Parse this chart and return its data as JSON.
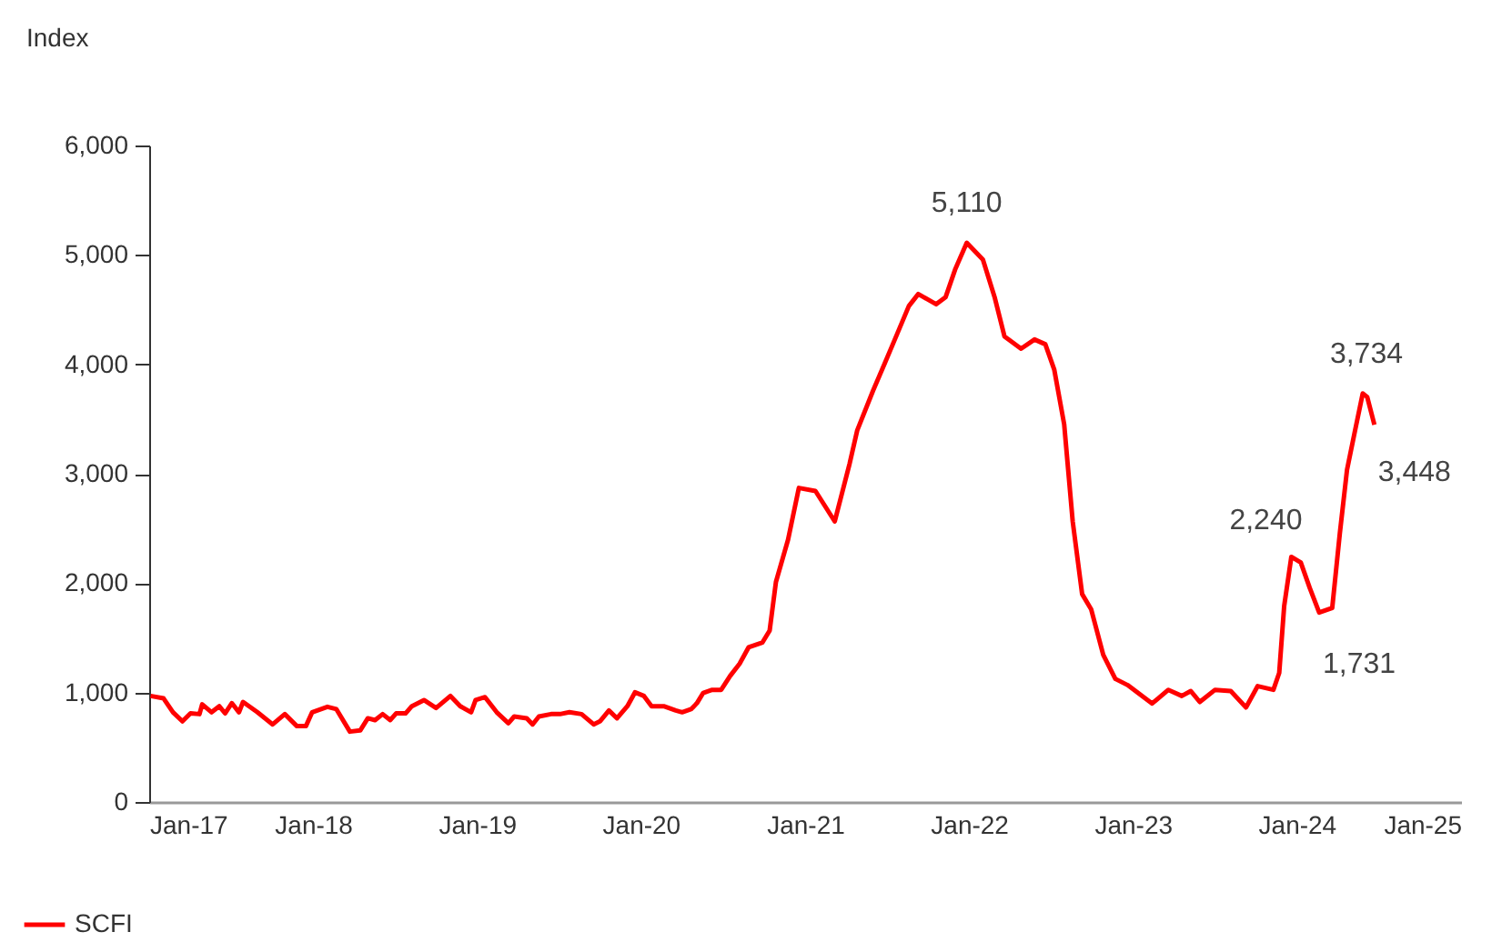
{
  "chart_data": {
    "type": "line",
    "ylabel": "Index",
    "x": [
      "2017-01-04",
      "2017-02-02",
      "2017-02-23",
      "2017-03-16",
      "2017-04-03",
      "2017-04-23",
      "2017-04-29",
      "2017-05-20",
      "2017-06-06",
      "2017-06-19",
      "2017-07-04",
      "2017-07-20",
      "2017-07-29",
      "2017-08-30",
      "2017-10-03",
      "2017-10-30",
      "2017-11-26",
      "2017-12-16",
      "2017-12-30",
      "2018-02-02",
      "2018-02-22",
      "2018-03-24",
      "2018-04-16",
      "2018-05-03",
      "2018-05-19",
      "2018-06-05",
      "2018-06-22",
      "2018-07-05",
      "2018-07-26",
      "2018-08-09",
      "2018-09-05",
      "2018-10-02",
      "2018-11-03",
      "2018-11-25",
      "2018-12-19",
      "2018-12-29",
      "2019-01-19",
      "2019-02-14",
      "2019-03-12",
      "2019-03-25",
      "2019-04-22",
      "2019-05-05",
      "2019-05-19",
      "2019-06-15",
      "2019-07-05",
      "2019-07-26",
      "2019-08-22",
      "2019-09-18",
      "2019-10-02",
      "2019-10-22",
      "2019-11-09",
      "2019-12-02",
      "2019-12-19",
      "2020-01-08",
      "2020-01-25",
      "2020-02-21",
      "2020-03-19",
      "2020-04-02",
      "2020-04-22",
      "2020-05-05",
      "2020-05-19",
      "2020-06-08",
      "2020-06-28",
      "2020-07-18",
      "2020-08-08",
      "2020-08-28",
      "2020-09-28",
      "2020-10-14",
      "2020-10-28",
      "2020-11-24",
      "2020-12-18",
      "2021-01-24",
      "2021-03-08",
      "2021-04-10",
      "2021-04-27",
      "2021-06-01",
      "2021-06-27",
      "2021-07-17",
      "2021-08-20",
      "2021-09-10",
      "2021-10-20",
      "2021-11-10",
      "2021-12-01",
      "2021-12-27",
      "2022-02-01",
      "2022-02-27",
      "2022-03-21",
      "2022-04-27",
      "2022-05-27",
      "2022-06-20",
      "2022-07-10",
      "2022-08-01",
      "2022-08-20",
      "2022-09-10",
      "2022-09-30",
      "2022-10-27",
      "2022-11-23",
      "2022-12-20",
      "2023-02-13",
      "2023-03-21",
      "2023-04-20",
      "2023-05-10",
      "2023-05-30",
      "2023-07-03",
      "2023-08-07",
      "2023-09-10",
      "2023-10-06",
      "2023-11-10",
      "2023-11-23",
      "2023-12-04",
      "2023-12-20",
      "2024-01-10",
      "2024-01-30",
      "2024-02-20",
      "2024-03-20",
      "2024-04-06",
      "2024-04-22",
      "2024-05-10",
      "2024-05-27",
      "2024-06-06",
      "2024-06-22"
    ],
    "series": [
      {
        "name": "SCFI",
        "color": "#ff0000",
        "values": [
          969,
          947,
          820,
          737,
          810,
          803,
          892,
          820,
          875,
          810,
          903,
          820,
          914,
          820,
          709,
          803,
          693,
          693,
          820,
          870,
          848,
          643,
          654,
          765,
          748,
          803,
          748,
          810,
          810,
          875,
          931,
          859,
          969,
          875,
          820,
          931,
          958,
          820,
          720,
          781,
          765,
          709,
          781,
          803,
          803,
          820,
          803,
          709,
          737,
          836,
          765,
          875,
          1002,
          969,
          875,
          875,
          836,
          820,
          848,
          903,
          997,
          1025,
          1025,
          1152,
          1263,
          1413,
          1458,
          1567,
          2011,
          2398,
          2870,
          2842,
          2564,
          3091,
          3396,
          3756,
          4005,
          4200,
          4532,
          4642,
          4549,
          4615,
          4865,
          5110,
          4958,
          4615,
          4255,
          4143,
          4227,
          4183,
          3950,
          3452,
          2564,
          1900,
          1762,
          1346,
          1125,
          1069,
          900,
          1025,
          969,
          1014,
          914,
          1025,
          1014,
          864,
          1059,
          1025,
          1180,
          1790,
          2240,
          2189,
          1956,
          1731,
          1773,
          2455,
          3036,
          3396,
          3734,
          3701,
          3448
        ]
      }
    ],
    "annotations": [
      {
        "text": "5,110",
        "x": "2021-12-27",
        "y": 5110
      },
      {
        "text": "2,240",
        "x": "2023-12-20",
        "y": 2240
      },
      {
        "text": "1,731",
        "x": "2024-02-20",
        "y": 1731
      },
      {
        "text": "3,734",
        "x": "2024-05-27",
        "y": 3734
      },
      {
        "text": "3,448",
        "x": "2024-06-22",
        "y": 3448
      }
    ],
    "xlim": [
      "2017-01-01",
      "2025-01-01"
    ],
    "xticks": [
      {
        "value": "2017-01-01",
        "label": "Jan-17"
      },
      {
        "value": "2018-01-01",
        "label": "Jan-18"
      },
      {
        "value": "2019-01-01",
        "label": "Jan-19"
      },
      {
        "value": "2020-01-01",
        "label": "Jan-20"
      },
      {
        "value": "2021-01-01",
        "label": "Jan-21"
      },
      {
        "value": "2022-01-01",
        "label": "Jan-22"
      },
      {
        "value": "2023-01-01",
        "label": "Jan-23"
      },
      {
        "value": "2024-01-01",
        "label": "Jan-24"
      },
      {
        "value": "2025-01-01",
        "label": "Jan-25"
      }
    ],
    "ylim": [
      0,
      6000
    ],
    "yticks": [
      {
        "value": 0,
        "label": "0"
      },
      {
        "value": 1000,
        "label": "1,000"
      },
      {
        "value": 2000,
        "label": "2,000"
      },
      {
        "value": 3000,
        "label": "3,000"
      },
      {
        "value": 4000,
        "label": "4,000"
      },
      {
        "value": 5000,
        "label": "5,000"
      },
      {
        "value": 6000,
        "label": "6,000"
      }
    ],
    "grid": false,
    "legend": "bottom left",
    "marker": "none",
    "line_style": "solid"
  }
}
